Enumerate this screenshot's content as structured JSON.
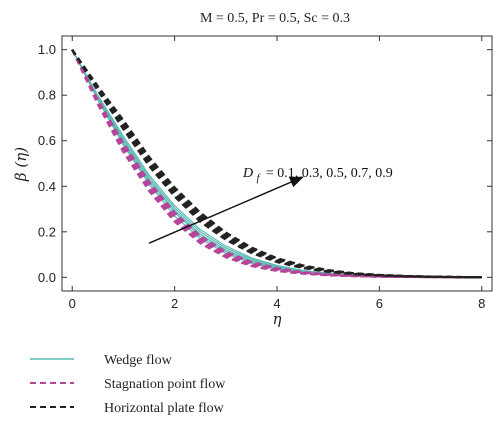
{
  "chart_data": {
    "type": "line",
    "title": "M = 0.5, Pr = 0.5, Sc = 0.3",
    "xlabel": "η",
    "ylabel": "β (η)",
    "xlim": [
      -0.2,
      8.2
    ],
    "ylim": [
      -0.06,
      1.06
    ],
    "xticks": [
      0,
      2,
      4,
      6,
      8
    ],
    "yticks": [
      0.0,
      0.2,
      0.4,
      0.6,
      0.8,
      1.0
    ],
    "grid": false,
    "legend_position": "bottom-left, below plot",
    "annotation": {
      "text": "D_f = 0.1, 0.3, 0.5, 0.7, 0.9",
      "label_prefix": "D",
      "label_sub": "f",
      "label_values": "= 0.1, 0.3, 0.5, 0.7, 0.9",
      "arrow_from": [
        1.5,
        0.15
      ],
      "arrow_to": [
        4.5,
        0.44
      ]
    },
    "x": [
      0,
      0.5,
      1,
      1.5,
      2,
      2.5,
      3,
      3.5,
      4,
      4.5,
      5,
      5.5,
      6,
      6.5,
      7,
      7.5,
      8
    ],
    "Df": [
      0.1,
      0.3,
      0.5,
      0.7,
      0.9
    ],
    "series": [
      {
        "name": "Wedge flow",
        "color": "#5bbcb5",
        "dash": "solid",
        "curves": [
          [
            1.0,
            0.78,
            0.58,
            0.41,
            0.27,
            0.17,
            0.105,
            0.062,
            0.036,
            0.021,
            0.012,
            0.007,
            0.004,
            0.0025,
            0.0015,
            0.0007,
            0.0
          ],
          [
            1.0,
            0.785,
            0.59,
            0.42,
            0.285,
            0.18,
            0.113,
            0.068,
            0.04,
            0.023,
            0.013,
            0.0075,
            0.0045,
            0.0027,
            0.0016,
            0.0008,
            0.0
          ],
          [
            1.0,
            0.79,
            0.6,
            0.43,
            0.295,
            0.19,
            0.121,
            0.074,
            0.044,
            0.026,
            0.015,
            0.0085,
            0.005,
            0.003,
            0.0018,
            0.0009,
            0.0
          ],
          [
            1.0,
            0.795,
            0.61,
            0.44,
            0.305,
            0.2,
            0.129,
            0.08,
            0.048,
            0.028,
            0.016,
            0.009,
            0.0055,
            0.0033,
            0.002,
            0.001,
            0.0
          ],
          [
            1.0,
            0.8,
            0.62,
            0.45,
            0.315,
            0.21,
            0.137,
            0.086,
            0.052,
            0.031,
            0.018,
            0.01,
            0.006,
            0.0036,
            0.0022,
            0.0011,
            0.0
          ]
        ]
      },
      {
        "name": "Stagnation point flow",
        "color": "#b5459a",
        "dash": "6,4",
        "curves": [
          [
            1.0,
            0.76,
            0.55,
            0.38,
            0.245,
            0.15,
            0.088,
            0.05,
            0.028,
            0.016,
            0.009,
            0.005,
            0.003,
            0.002,
            0.0012,
            0.0006,
            0.0
          ],
          [
            1.0,
            0.765,
            0.56,
            0.39,
            0.255,
            0.158,
            0.094,
            0.054,
            0.031,
            0.018,
            0.01,
            0.0056,
            0.0033,
            0.0021,
            0.0013,
            0.0006,
            0.0
          ],
          [
            1.0,
            0.77,
            0.57,
            0.4,
            0.265,
            0.166,
            0.1,
            0.058,
            0.034,
            0.019,
            0.011,
            0.0062,
            0.0036,
            0.0022,
            0.0014,
            0.0007,
            0.0
          ],
          [
            1.0,
            0.775,
            0.58,
            0.41,
            0.275,
            0.174,
            0.106,
            0.063,
            0.037,
            0.021,
            0.012,
            0.0068,
            0.004,
            0.0024,
            0.0015,
            0.0007,
            0.0
          ],
          [
            1.0,
            0.78,
            0.59,
            0.42,
            0.285,
            0.182,
            0.112,
            0.068,
            0.04,
            0.023,
            0.013,
            0.0074,
            0.0043,
            0.0026,
            0.0016,
            0.0008,
            0.0
          ]
        ]
      },
      {
        "name": "Horizontal plate flow",
        "color": "#222222",
        "dash": "6,4",
        "curves": [
          [
            1.0,
            0.82,
            0.65,
            0.49,
            0.355,
            0.245,
            0.165,
            0.107,
            0.067,
            0.041,
            0.024,
            0.014,
            0.008,
            0.0045,
            0.0025,
            0.0011,
            0.0
          ],
          [
            1.0,
            0.825,
            0.66,
            0.5,
            0.365,
            0.255,
            0.173,
            0.113,
            0.072,
            0.044,
            0.026,
            0.015,
            0.0087,
            0.0048,
            0.0027,
            0.0012,
            0.0
          ],
          [
            1.0,
            0.83,
            0.67,
            0.51,
            0.375,
            0.265,
            0.181,
            0.119,
            0.076,
            0.047,
            0.028,
            0.016,
            0.0094,
            0.0052,
            0.0029,
            0.0013,
            0.0
          ],
          [
            1.0,
            0.835,
            0.68,
            0.52,
            0.385,
            0.275,
            0.189,
            0.125,
            0.08,
            0.05,
            0.03,
            0.017,
            0.01,
            0.0056,
            0.0031,
            0.0014,
            0.0
          ],
          [
            1.0,
            0.84,
            0.69,
            0.53,
            0.395,
            0.285,
            0.197,
            0.131,
            0.084,
            0.053,
            0.032,
            0.018,
            0.0107,
            0.006,
            0.0033,
            0.0015,
            0.0
          ]
        ]
      }
    ]
  }
}
